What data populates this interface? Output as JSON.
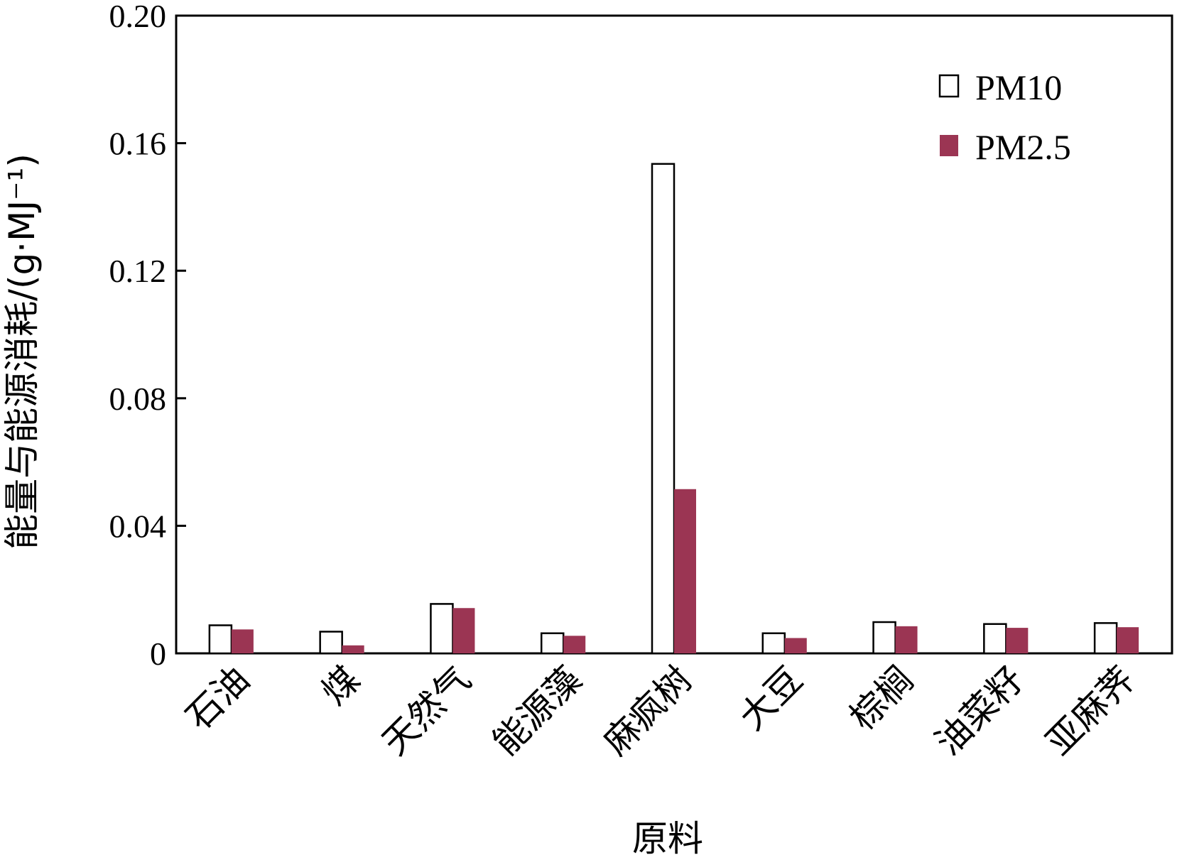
{
  "chart_data": {
    "type": "bar",
    "title": "",
    "xlabel": "原料",
    "ylabel": "能量与能源消耗/(g·MJ⁻¹)",
    "ylim": [
      0,
      0.2
    ],
    "yticks": [
      0,
      0.04,
      0.08,
      0.12,
      0.16,
      0.2
    ],
    "ytick_labels": [
      "0",
      "0.04",
      "0.08",
      "0.12",
      "0.16",
      "0.20"
    ],
    "legend_position": "top-right",
    "categories": [
      "石油",
      "煤",
      "天然气",
      "能源藻",
      "麻疯树",
      "大豆",
      "棕榈",
      "油菜籽",
      "亚麻荠"
    ],
    "series": [
      {
        "name": "PM10",
        "color": "#ffffff",
        "stroke": "#000000",
        "values": [
          0.0088,
          0.0068,
          0.0155,
          0.0063,
          0.1535,
          0.0063,
          0.0098,
          0.0092,
          0.0095
        ]
      },
      {
        "name": "PM2.5",
        "color": "#9b3553",
        "stroke": "#9b3553",
        "values": [
          0.0075,
          0.0025,
          0.0142,
          0.0055,
          0.0515,
          0.0048,
          0.0085,
          0.008,
          0.0082
        ]
      }
    ]
  }
}
